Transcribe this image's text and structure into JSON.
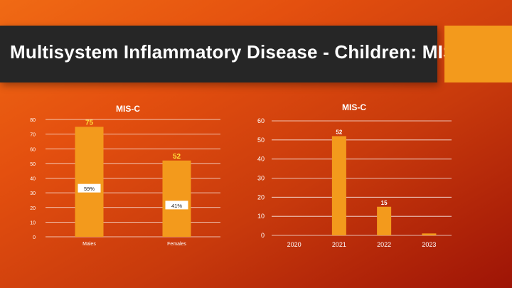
{
  "slide": {
    "title": "Multisystem Inflammatory Disease - Children: MIS-C",
    "accent_color": "#f39a1c"
  },
  "chart_data": [
    {
      "type": "bar",
      "title": "MIS-C",
      "categories": [
        "Males",
        "Females"
      ],
      "values": [
        75,
        52
      ],
      "value_labels": [
        "75",
        "52"
      ],
      "percent_labels": [
        "59%",
        "41%"
      ],
      "ylim": [
        0,
        80
      ],
      "yticks": [
        0,
        10,
        20,
        30,
        40,
        50,
        60,
        70,
        80
      ],
      "grid": true,
      "bar_color": "#f39a1c",
      "value_label_color": "#ffe23a"
    },
    {
      "type": "bar",
      "title": "MIS-C",
      "categories": [
        "2020",
        "2021",
        "2022",
        "2023"
      ],
      "values": [
        0,
        52,
        15,
        1
      ],
      "value_labels": [
        "",
        "52",
        "15",
        ""
      ],
      "ylim": [
        0,
        60
      ],
      "yticks": [
        0,
        10,
        20,
        30,
        40,
        50,
        60
      ],
      "grid": true,
      "bar_color": "#f39a1c"
    }
  ]
}
